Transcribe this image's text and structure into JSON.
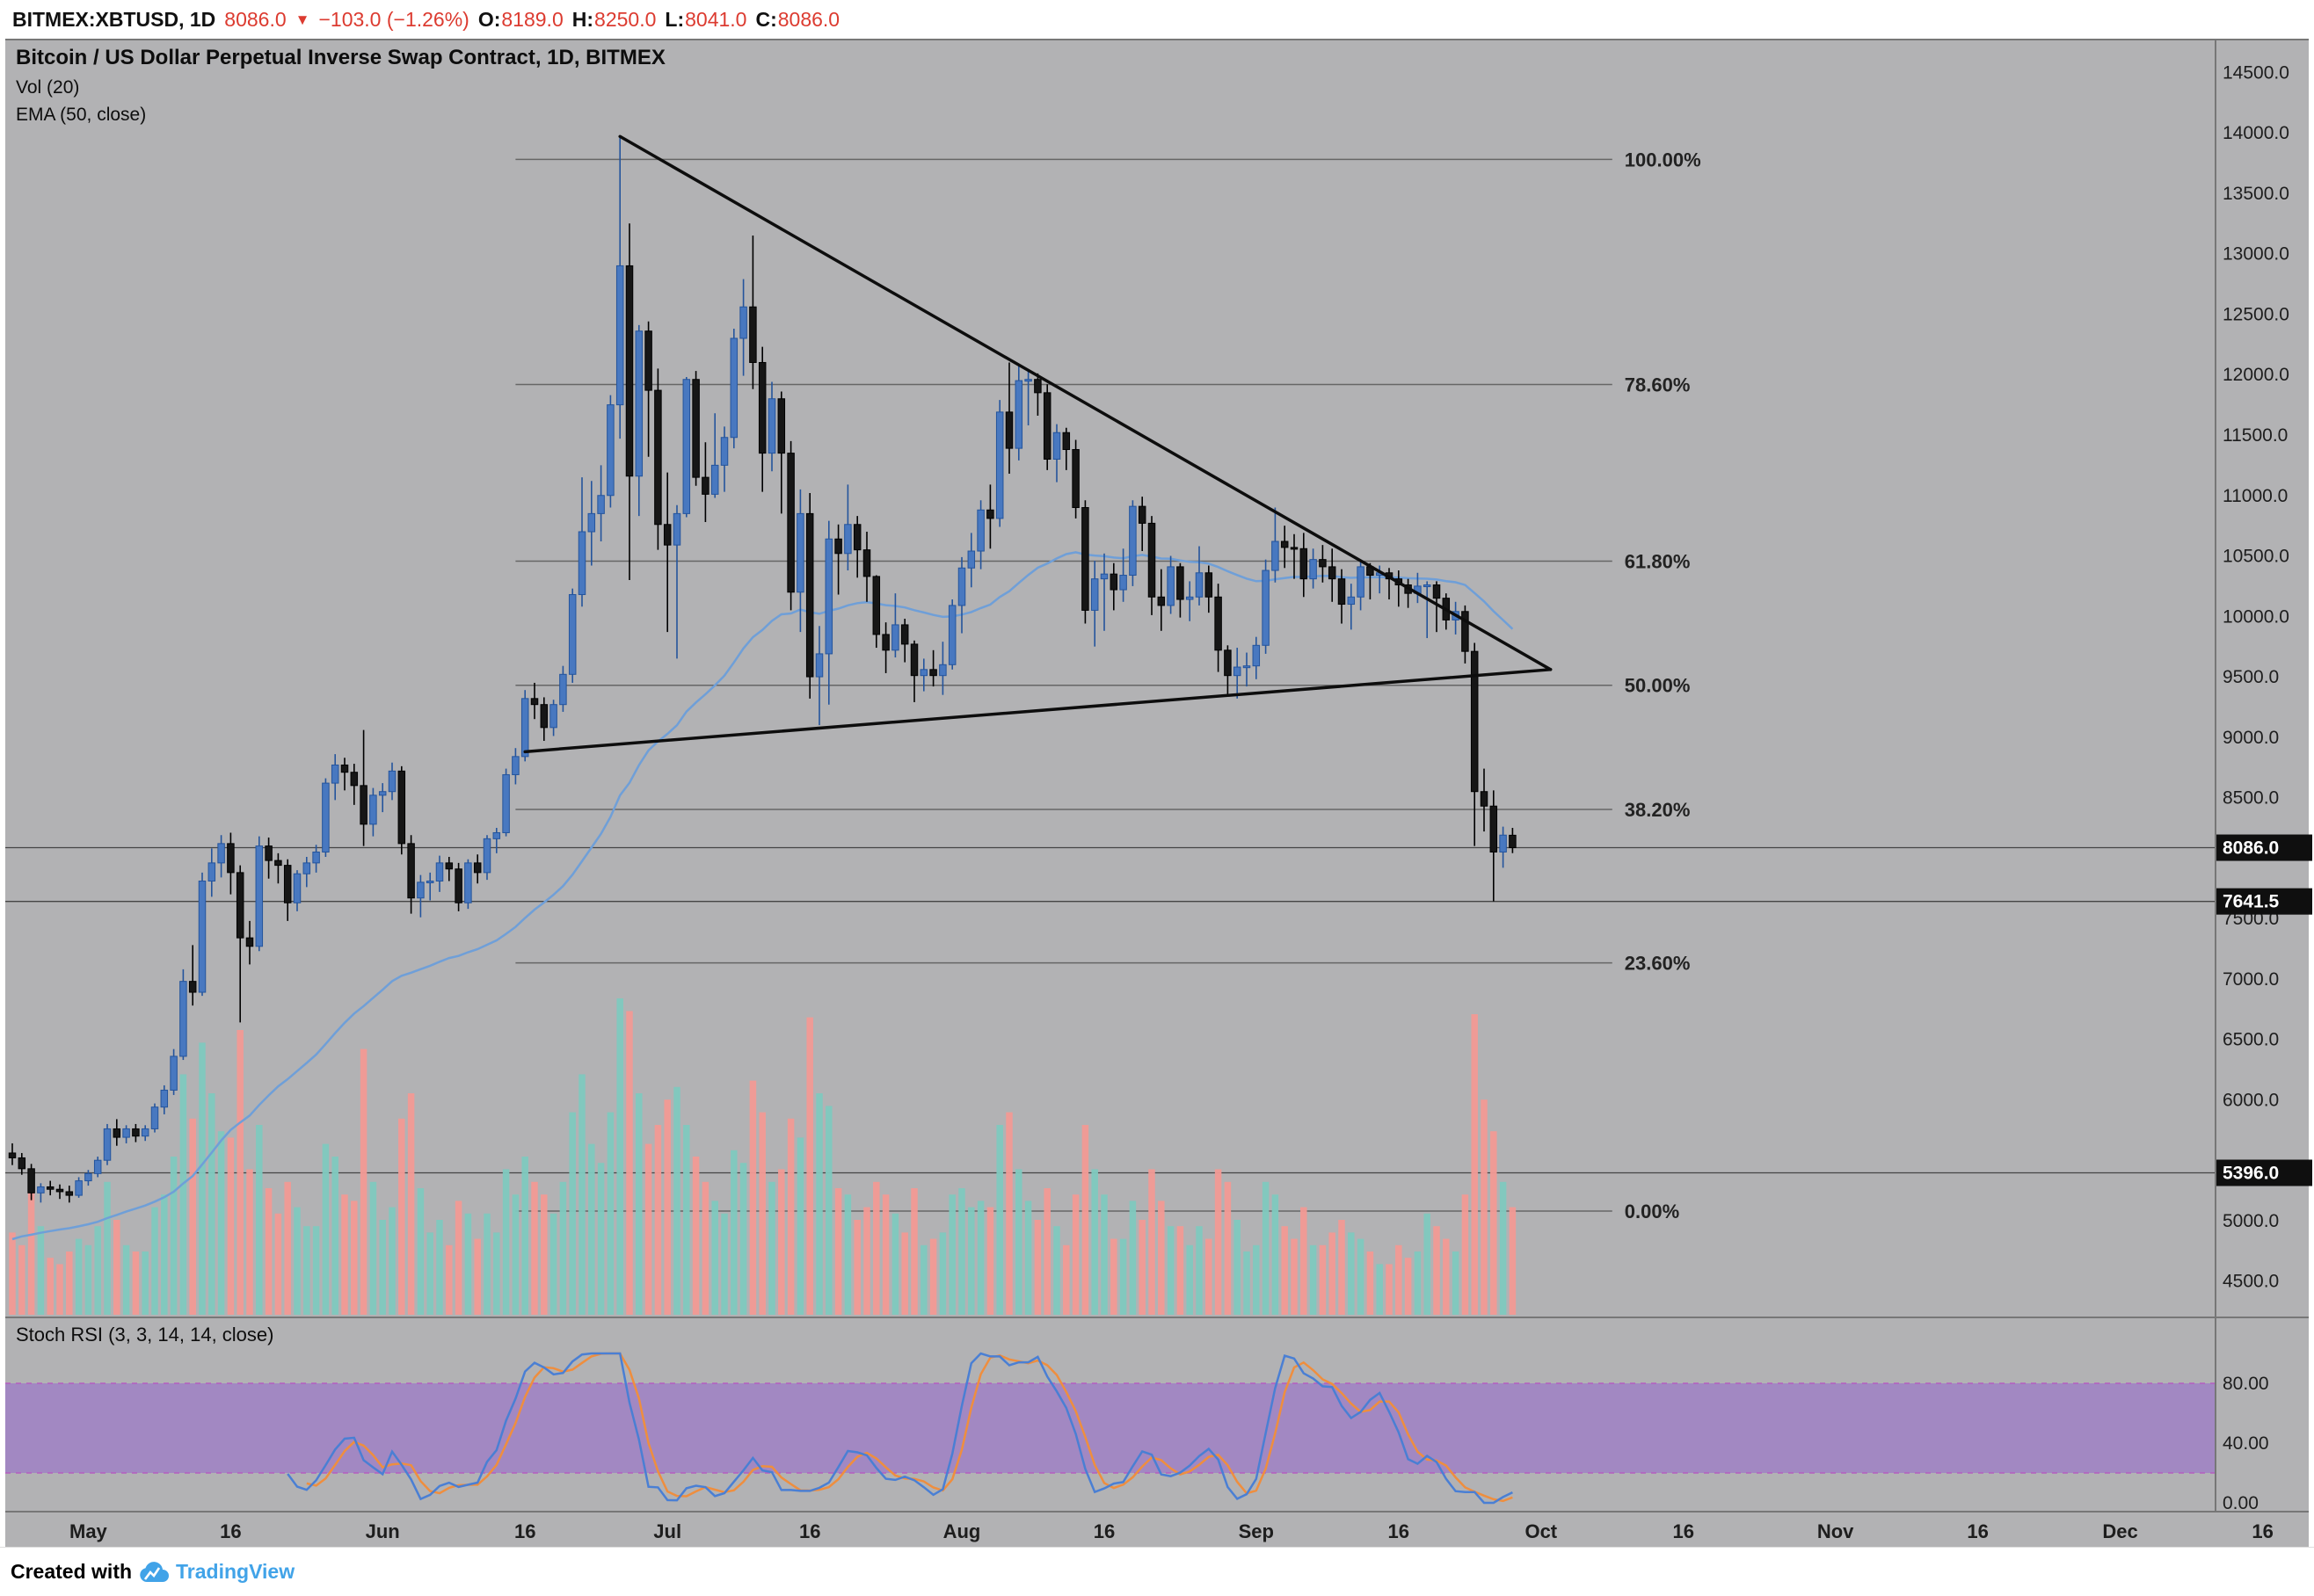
{
  "header": {
    "symbol": "BITMEX:XBTUSD, 1D",
    "price": "8086.0",
    "direction": "▼",
    "change": "−103.0 (−1.26%)",
    "o_label": "O:",
    "o": "8189.0",
    "h_label": "H:",
    "h": "8250.0",
    "l_label": "L:",
    "l": "8041.0",
    "c_label": "C:",
    "c": "8086.0"
  },
  "legend": {
    "title": "Bitcoin / US Dollar Perpetual Inverse Swap Contract, 1D, BITMEX",
    "vol": "Vol (20)",
    "ema": "EMA (50, close)"
  },
  "stoch_legend": "Stoch RSI (3, 3, 14, 14, close)",
  "footer": {
    "created_with": "Created with",
    "brand": "TradingView"
  },
  "colors": {
    "header_bg": "#ffffff",
    "red": "#dc3b30",
    "pane_bg": "#b2b2b4",
    "axis_text": "#1d1d1d",
    "candle_up": "#4878c0",
    "candle_up_border": "#24549c",
    "candle_down": "#161616",
    "candle_down_border": "#000000",
    "ema": "#6f9fd8",
    "vol_up": "#7fc9bf",
    "vol_down": "#f29a95",
    "fib_line": "#666666",
    "fib_text": "#222222",
    "trendline": "#0d0d0d",
    "level_line": "#454545",
    "badge_bg": "#0f0f0f",
    "badge_text": "#ffffff",
    "stoch_k": "#4a7fd4",
    "stoch_d": "#ef8e3e",
    "stoch_band_fill": "rgba(146,94,207,0.50)",
    "stoch_band_border": "#b45ec0",
    "separator": "#777777",
    "brand_blue": "#41a3e8"
  },
  "chart_data": {
    "type": "candlestick",
    "symbol": "BITMEX:XBTUSD",
    "interval": "1D",
    "title": "Bitcoin / US Dollar Perpetual Inverse Swap Contract, 1D, BITMEX",
    "price_axis": {
      "min": 4200,
      "max": 14750,
      "tick_start": 4500,
      "tick_end": 14500,
      "tick_step": 500
    },
    "ema_period": 50,
    "ema_seed": 4820,
    "vol_ma_period": 20,
    "stoch_rsi": {
      "rsi_len": 14,
      "stoch_len": 14,
      "k": 3,
      "d": 3,
      "upper": 80,
      "lower": 20,
      "ticks": [
        80,
        40,
        0
      ]
    },
    "fib": {
      "from_day": 53,
      "to_day": 168.5,
      "levels": [
        {
          "label": "100.00%",
          "price": 13780
        },
        {
          "label": "78.60%",
          "price": 11918
        },
        {
          "label": "61.80%",
          "price": 10457
        },
        {
          "label": "50.00%",
          "price": 9430
        },
        {
          "label": "38.20%",
          "price": 8403
        },
        {
          "label": "23.60%",
          "price": 7133
        },
        {
          "label": "0.00%",
          "price": 5080
        }
      ]
    },
    "h_lines": [
      {
        "price": 8086.0,
        "label": "8086.0",
        "style": "current"
      },
      {
        "price": 7641.5,
        "label": "7641.5",
        "style": "level"
      },
      {
        "price": 5396.0,
        "label": "5396.0",
        "style": "level"
      }
    ],
    "trendlines": [
      {
        "d1": 64,
        "p1": 13970,
        "d2": 162,
        "p2": 9560
      },
      {
        "d1": 54,
        "p1": 8880,
        "d2": 162,
        "p2": 9560
      }
    ],
    "time_axis": [
      {
        "label": "May",
        "day": 8
      },
      {
        "label": "16",
        "day": 23
      },
      {
        "label": "Jun",
        "day": 39
      },
      {
        "label": "16",
        "day": 54
      },
      {
        "label": "Jul",
        "day": 69
      },
      {
        "label": "16",
        "day": 84
      },
      {
        "label": "Aug",
        "day": 100
      },
      {
        "label": "16",
        "day": 115
      },
      {
        "label": "Sep",
        "day": 131
      },
      {
        "label": "16",
        "day": 146
      },
      {
        "label": "Oct",
        "day": 161
      },
      {
        "label": "16",
        "day": 176
      },
      {
        "label": "Nov",
        "day": 192
      },
      {
        "label": "16",
        "day": 207
      },
      {
        "label": "Dec",
        "day": 222
      },
      {
        "label": "16",
        "day": 237
      }
    ],
    "candles": [
      [
        5560,
        5640,
        5460,
        5520,
        26
      ],
      [
        5520,
        5560,
        5380,
        5430,
        22
      ],
      [
        5430,
        5470,
        5170,
        5230,
        44
      ],
      [
        5230,
        5310,
        5150,
        5280,
        28
      ],
      [
        5280,
        5330,
        5210,
        5260,
        18
      ],
      [
        5260,
        5300,
        5180,
        5240,
        16
      ],
      [
        5240,
        5290,
        5150,
        5210,
        20
      ],
      [
        5210,
        5360,
        5190,
        5330,
        24
      ],
      [
        5330,
        5420,
        5290,
        5390,
        22
      ],
      [
        5390,
        5530,
        5360,
        5500,
        28
      ],
      [
        5500,
        5800,
        5460,
        5760,
        42
      ],
      [
        5760,
        5840,
        5620,
        5690,
        30
      ],
      [
        5690,
        5790,
        5640,
        5760,
        22
      ],
      [
        5760,
        5800,
        5650,
        5700,
        20
      ],
      [
        5700,
        5790,
        5660,
        5760,
        20
      ],
      [
        5760,
        5970,
        5730,
        5940,
        34
      ],
      [
        5940,
        6120,
        5880,
        6080,
        38
      ],
      [
        6080,
        6420,
        6040,
        6360,
        50
      ],
      [
        6360,
        7080,
        6330,
        6980,
        76
      ],
      [
        6980,
        7280,
        6780,
        6890,
        62
      ],
      [
        6890,
        7880,
        6860,
        7810,
        86
      ],
      [
        7810,
        8080,
        7680,
        7960,
        70
      ],
      [
        7960,
        8190,
        7840,
        8120,
        58
      ],
      [
        8120,
        8210,
        7700,
        7880,
        56
      ],
      [
        7880,
        7940,
        6640,
        7340,
        90
      ],
      [
        7340,
        7480,
        7120,
        7270,
        46
      ],
      [
        7270,
        8180,
        7230,
        8100,
        60
      ],
      [
        8100,
        8170,
        7830,
        7980,
        40
      ],
      [
        7980,
        8040,
        7790,
        7940,
        32
      ],
      [
        7940,
        7990,
        7480,
        7630,
        42
      ],
      [
        7630,
        7900,
        7560,
        7870,
        34
      ],
      [
        7870,
        8010,
        7760,
        7960,
        28
      ],
      [
        7960,
        8110,
        7880,
        8050,
        28
      ],
      [
        8050,
        8660,
        8010,
        8620,
        54
      ],
      [
        8620,
        8860,
        8480,
        8770,
        50
      ],
      [
        8770,
        8830,
        8560,
        8710,
        38
      ],
      [
        8710,
        8780,
        8440,
        8600,
        36
      ],
      [
        8600,
        9060,
        8100,
        8280,
        84
      ],
      [
        8280,
        8580,
        8180,
        8520,
        42
      ],
      [
        8520,
        8620,
        8380,
        8550,
        30
      ],
      [
        8550,
        8790,
        8480,
        8720,
        34
      ],
      [
        8720,
        8760,
        8030,
        8120,
        62
      ],
      [
        8120,
        8190,
        7540,
        7670,
        70
      ],
      [
        7670,
        7860,
        7510,
        7800,
        40
      ],
      [
        7800,
        7880,
        7650,
        7810,
        26
      ],
      [
        7810,
        8020,
        7720,
        7960,
        30
      ],
      [
        7960,
        8010,
        7810,
        7910,
        22
      ],
      [
        7910,
        7960,
        7560,
        7630,
        36
      ],
      [
        7630,
        7990,
        7580,
        7960,
        32
      ],
      [
        7960,
        8030,
        7790,
        7880,
        24
      ],
      [
        7880,
        8190,
        7820,
        8160,
        32
      ],
      [
        8160,
        8250,
        8040,
        8210,
        26
      ],
      [
        8210,
        8740,
        8180,
        8690,
        46
      ],
      [
        8690,
        8910,
        8610,
        8840,
        38
      ],
      [
        8840,
        9390,
        8800,
        9320,
        50
      ],
      [
        9320,
        9450,
        9150,
        9270,
        42
      ],
      [
        9270,
        9330,
        8970,
        9080,
        38
      ],
      [
        9080,
        9310,
        9010,
        9270,
        32
      ],
      [
        9270,
        9590,
        9210,
        9520,
        42
      ],
      [
        9520,
        10230,
        9450,
        10180,
        64
      ],
      [
        10180,
        11150,
        10080,
        10700,
        76
      ],
      [
        10700,
        11120,
        10420,
        10850,
        54
      ],
      [
        10850,
        11250,
        10620,
        11000,
        48
      ],
      [
        11000,
        11830,
        10900,
        11750,
        64
      ],
      [
        11750,
        13970,
        11470,
        12900,
        100
      ],
      [
        12900,
        13250,
        10300,
        11160,
        96
      ],
      [
        11160,
        12410,
        10830,
        12360,
        70
      ],
      [
        12360,
        12440,
        11320,
        11870,
        54
      ],
      [
        11870,
        12050,
        10550,
        10760,
        60
      ],
      [
        10760,
        11190,
        9870,
        10590,
        68
      ],
      [
        10590,
        10920,
        9650,
        10850,
        72
      ],
      [
        10850,
        11980,
        10820,
        11960,
        60
      ],
      [
        11960,
        12030,
        11080,
        11150,
        50
      ],
      [
        11150,
        11440,
        10780,
        11010,
        42
      ],
      [
        11010,
        11680,
        10980,
        11250,
        36
      ],
      [
        11250,
        11570,
        11030,
        11480,
        32
      ],
      [
        11480,
        12380,
        11390,
        12300,
        52
      ],
      [
        12300,
        12790,
        11990,
        12560,
        48
      ],
      [
        12560,
        13150,
        11880,
        12100,
        74
      ],
      [
        12100,
        12230,
        11030,
        11350,
        64
      ],
      [
        11350,
        11940,
        11200,
        11800,
        42
      ],
      [
        11800,
        11860,
        10850,
        11350,
        46
      ],
      [
        11350,
        11450,
        10050,
        10200,
        62
      ],
      [
        10200,
        11050,
        9870,
        10850,
        56
      ],
      [
        10850,
        11020,
        9320,
        9500,
        94
      ],
      [
        9500,
        9920,
        9100,
        9690,
        70
      ],
      [
        9690,
        10790,
        9270,
        10640,
        66
      ],
      [
        10640,
        10760,
        10180,
        10520,
        40
      ],
      [
        10520,
        11090,
        10380,
        10760,
        38
      ],
      [
        10760,
        10830,
        10320,
        10550,
        30
      ],
      [
        10550,
        10700,
        10120,
        10330,
        34
      ],
      [
        10330,
        10340,
        9740,
        9850,
        42
      ],
      [
        9850,
        9950,
        9530,
        9720,
        38
      ],
      [
        9720,
        10190,
        9660,
        9930,
        32
      ],
      [
        9930,
        9980,
        9620,
        9770,
        26
      ],
      [
        9770,
        9800,
        9290,
        9510,
        40
      ],
      [
        9510,
        9650,
        9380,
        9560,
        22
      ],
      [
        9560,
        9720,
        9420,
        9510,
        24
      ],
      [
        9510,
        9790,
        9350,
        9600,
        26
      ],
      [
        9600,
        10140,
        9560,
        10090,
        38
      ],
      [
        10090,
        10490,
        9860,
        10400,
        40
      ],
      [
        10400,
        10690,
        10240,
        10540,
        34
      ],
      [
        10540,
        10960,
        10390,
        10880,
        36
      ],
      [
        10880,
        11090,
        10560,
        10810,
        34
      ],
      [
        10810,
        11790,
        10740,
        11690,
        60
      ],
      [
        11690,
        12100,
        11180,
        11390,
        64
      ],
      [
        11390,
        12070,
        11290,
        11950,
        46
      ],
      [
        11950,
        12040,
        11580,
        11960,
        36
      ],
      [
        11960,
        12010,
        11660,
        11850,
        30
      ],
      [
        11850,
        11920,
        11210,
        11300,
        40
      ],
      [
        11300,
        11590,
        11110,
        11520,
        28
      ],
      [
        11520,
        11560,
        11210,
        11380,
        22
      ],
      [
        11380,
        11460,
        10810,
        10900,
        38
      ],
      [
        10900,
        10960,
        9940,
        10050,
        60
      ],
      [
        10050,
        10460,
        9750,
        10310,
        46
      ],
      [
        10310,
        10520,
        9880,
        10350,
        38
      ],
      [
        10350,
        10440,
        10050,
        10220,
        24
      ],
      [
        10220,
        10560,
        10120,
        10340,
        24
      ],
      [
        10340,
        10960,
        10250,
        10910,
        36
      ],
      [
        10910,
        10990,
        10540,
        10770,
        30
      ],
      [
        10770,
        10830,
        10010,
        10160,
        46
      ],
      [
        10160,
        10390,
        9880,
        10090,
        36
      ],
      [
        10090,
        10500,
        10020,
        10410,
        28
      ],
      [
        10410,
        10440,
        9990,
        10140,
        28
      ],
      [
        10140,
        10290,
        9960,
        10160,
        22
      ],
      [
        10160,
        10580,
        10090,
        10360,
        28
      ],
      [
        10360,
        10420,
        10030,
        10160,
        24
      ],
      [
        10160,
        10270,
        9540,
        9720,
        46
      ],
      [
        9720,
        9760,
        9350,
        9510,
        42
      ],
      [
        9510,
        9740,
        9320,
        9580,
        30
      ],
      [
        9580,
        9700,
        9420,
        9590,
        20
      ],
      [
        9590,
        9830,
        9480,
        9760,
        22
      ],
      [
        9760,
        10470,
        9690,
        10380,
        42
      ],
      [
        10380,
        10900,
        10280,
        10620,
        38
      ],
      [
        10620,
        10750,
        10400,
        10570,
        28
      ],
      [
        10570,
        10680,
        10310,
        10560,
        24
      ],
      [
        10560,
        10690,
        10160,
        10310,
        34
      ],
      [
        10310,
        10560,
        10230,
        10470,
        22
      ],
      [
        10470,
        10590,
        10280,
        10410,
        22
      ],
      [
        10410,
        10560,
        10120,
        10310,
        26
      ],
      [
        10310,
        10390,
        9940,
        10100,
        30
      ],
      [
        10100,
        10270,
        9890,
        10160,
        26
      ],
      [
        10160,
        10450,
        10050,
        10410,
        24
      ],
      [
        10410,
        10440,
        10140,
        10340,
        20
      ],
      [
        10340,
        10420,
        10190,
        10360,
        16
      ],
      [
        10360,
        10400,
        10140,
        10310,
        16
      ],
      [
        10310,
        10380,
        10080,
        10260,
        22
      ],
      [
        10260,
        10310,
        10070,
        10190,
        18
      ],
      [
        10190,
        10360,
        10110,
        10250,
        20
      ],
      [
        10250,
        10290,
        9820,
        10260,
        32
      ],
      [
        10260,
        10290,
        9870,
        10150,
        28
      ],
      [
        10150,
        10190,
        9890,
        9970,
        24
      ],
      [
        9970,
        10120,
        9850,
        10040,
        20
      ],
      [
        10040,
        10090,
        9610,
        9710,
        38
      ],
      [
        9710,
        9780,
        8100,
        8550,
        95
      ],
      [
        8550,
        8740,
        8220,
        8430,
        68
      ],
      [
        8430,
        8560,
        7641.5,
        8050,
        58
      ],
      [
        8050,
        8260,
        7920,
        8190,
        42
      ],
      [
        8189,
        8250,
        8041,
        8086,
        34
      ]
    ]
  }
}
